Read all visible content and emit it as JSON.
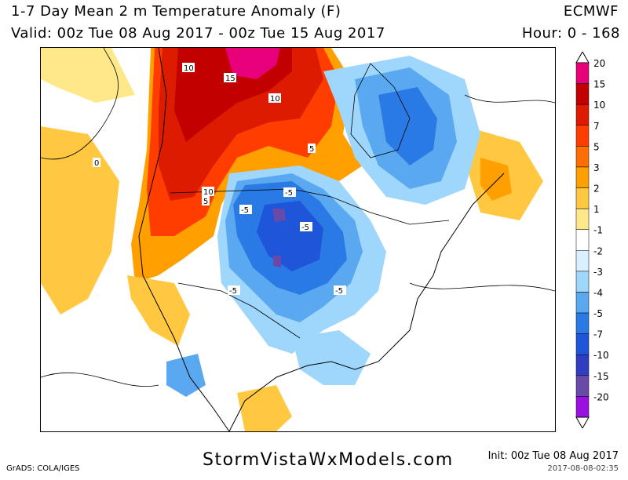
{
  "header": {
    "title": "1-7 Day Mean 2 m Temperature Anomaly (F)",
    "model": "ECMWF",
    "valid": "Valid: 00z Tue 08 Aug 2017 - 00z Tue 15 Aug 2017",
    "hour": "Hour: 0 - 168"
  },
  "colorbar": {
    "unit": "F",
    "levels": [
      {
        "label": "20",
        "color": "#e8007a"
      },
      {
        "label": "15",
        "color": "#c20000"
      },
      {
        "label": "10",
        "color": "#dc1b00"
      },
      {
        "label": "7",
        "color": "#ff3d00"
      },
      {
        "label": "5",
        "color": "#ff6e00"
      },
      {
        "label": "3",
        "color": "#ffa000"
      },
      {
        "label": "2",
        "color": "#ffc840"
      },
      {
        "label": "1",
        "color": "#ffe88a"
      },
      {
        "label": "-1",
        "color": "#ffffff"
      },
      {
        "label": "-2",
        "color": "#d8f0ff"
      },
      {
        "label": "-3",
        "color": "#9fd6fb"
      },
      {
        "label": "-4",
        "color": "#5aa8ef"
      },
      {
        "label": "-5",
        "color": "#2a7ae5"
      },
      {
        "label": "-7",
        "color": "#1f55d8"
      },
      {
        "label": "-10",
        "color": "#2f3ec0"
      },
      {
        "label": "-15",
        "color": "#6a4aa8"
      },
      {
        "label": "-20",
        "color": "#9a10e0"
      }
    ]
  },
  "map": {
    "contour_labels": [
      "10",
      "15",
      "10",
      "5",
      "10",
      "5",
      "-5",
      "-5",
      "-5",
      "-5",
      "-5",
      "0"
    ]
  },
  "footer": {
    "website": "StormVistaWxModels.com",
    "software": "GrADS: COLA/IGES",
    "init": "Init: 00z Tue 08 Aug 2017",
    "timestamp": "2017-08-08-02:35"
  }
}
